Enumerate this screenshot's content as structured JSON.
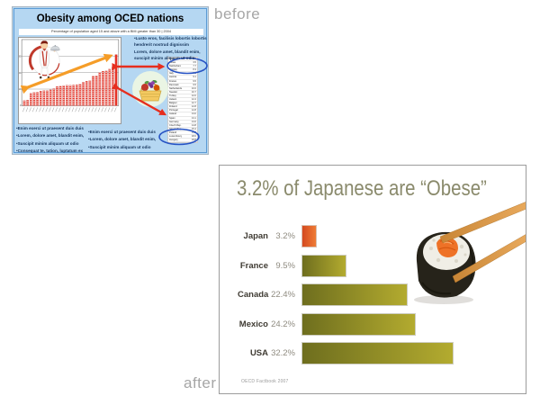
{
  "labels": {
    "before": "before",
    "after": "after"
  },
  "before_slide": {
    "title": "Obesity among OCED nations",
    "subtitle": "Percentage of population aged 15 and above with a BMI greater than 30 | 2004",
    "callout_top_right": [
      "•Lusto eros, facilisis lobortis lobortis",
      "hendrerit nostrud dignissim",
      "Lorem, dolore amet, blandit enim,",
      "suscipit minim aliquam ut odio"
    ],
    "bullets_bottom_left": [
      "•Enim exerci ut praesent duis duis",
      "•Lorem, dolore amet, blandit enim,",
      "•Suscipit minim aliquam ut odio",
      "•Consequat te, tation, luptatum ex"
    ],
    "bullets_bottom_middle": [
      "•Enim exerci ut praesent duis duis",
      "•Lorem, dolore amet, blandit enim,",
      "•Suscipit minim aliquam ut odio"
    ],
    "table_rows": [
      {
        "c": "Japan",
        "v": "3.2"
      },
      {
        "c": "Korea",
        "v": "3.5"
      },
      {
        "c": "Switzerland",
        "v": "7.7"
      },
      {
        "c": "Norway",
        "v": "8.3"
      },
      {
        "c": "Italy",
        "v": "8.5"
      },
      {
        "c": "Austria",
        "v": "9.1"
      },
      {
        "c": "France",
        "v": "9.5"
      },
      {
        "c": "Denmark",
        "v": "9.5"
      },
      {
        "c": "Netherlands",
        "v": "10.0"
      },
      {
        "c": "Sweden",
        "v": "10.7"
      },
      {
        "c": "Turkey",
        "v": "12.0"
      },
      {
        "c": "Iceland",
        "v": "12.4"
      },
      {
        "c": "Belgium",
        "v": "12.7"
      },
      {
        "c": "Finland",
        "v": "12.8"
      },
      {
        "c": "Portugal",
        "v": "12.8"
      },
      {
        "c": "Ireland",
        "v": "13.0"
      },
      {
        "c": "Spain",
        "v": "13.1"
      },
      {
        "c": "Germany",
        "v": "13.6"
      },
      {
        "c": "Czech Rep.",
        "v": "14.8"
      },
      {
        "c": "Slovak Rep.",
        "v": "15.4"
      },
      {
        "c": "Poland",
        "v": "15.7"
      },
      {
        "c": "Luxembourg",
        "v": "18.6"
      },
      {
        "c": "Hungary",
        "v": "18.8"
      },
      {
        "c": "New Zealand",
        "v": "20.9"
      },
      {
        "c": "Australia",
        "v": "21.7"
      },
      {
        "c": "Greece",
        "v": "21.9"
      },
      {
        "c": "United Kin.",
        "v": "23.0"
      },
      {
        "c": "Mexico",
        "v": "24.2"
      },
      {
        "c": "United Sta.",
        "v": "32.2"
      }
    ],
    "colors": {
      "slide_bg": "#b5d7f2",
      "frame": "#5b9bd5",
      "bar_red": "#e63226",
      "arrow_orange": "#f59d28",
      "arrow_red": "#e62e1e",
      "oval_blue": "#2753c4",
      "text_blue": "#17365d"
    }
  },
  "after_slide": {
    "title": "3.2% of Japanese are “Obese”",
    "source": "OECD Factbook 2007",
    "rows": [
      {
        "label": "Japan",
        "value_label": "3.2%"
      },
      {
        "label": "France",
        "value_label": "9.5%"
      },
      {
        "label": "Canada",
        "value_label": "22.4%"
      },
      {
        "label": "Mexico",
        "value_label": "24.2%"
      },
      {
        "label": "USA",
        "value_label": "32.2%"
      }
    ],
    "colors": {
      "title": "#8a8a6c",
      "label": "#3f3b33",
      "value": "#8f8b80",
      "bar_olive": "#9b9727",
      "bar_highlight": "#e05c2a"
    }
  },
  "chart_data": [
    {
      "type": "bar",
      "title": "Obesity among OCED nations",
      "subtitle": "Percentage of population aged 15 and above with a BMI greater than 30 | 2004",
      "note": "about 29 ascending thin red bars; country tick labels illegible at source resolution; orange rising double-arrow annotation; red double-arrows point to side data table",
      "values_approx": [
        3.2,
        3.5,
        7.7,
        8.3,
        8.5,
        9.1,
        9.5,
        9.5,
        10.0,
        10.7,
        12.0,
        12.4,
        12.7,
        12.8,
        12.8,
        13.0,
        13.1,
        13.6,
        14.8,
        15.4,
        15.7,
        18.6,
        18.8,
        20.9,
        21.7,
        21.9,
        23.0,
        24.2,
        32.2
      ],
      "yticks": [
        "30",
        "20",
        "10",
        "0"
      ],
      "ylim": [
        0,
        40
      ],
      "grid": true,
      "legend": false
    },
    {
      "type": "bar",
      "orientation": "horizontal",
      "categories": [
        "Japan",
        "France",
        "Canada",
        "Mexico",
        "USA"
      ],
      "values": [
        3.2,
        9.5,
        22.4,
        24.2,
        32.2
      ],
      "value_labels": [
        "3.2%",
        "9.5%",
        "22.4%",
        "24.2%",
        "32.2%"
      ],
      "title": "3.2% of Japanese are “Obese”",
      "source": "OECD Factbook 2007",
      "xlim": [
        0,
        34
      ],
      "grid": false,
      "legend": false,
      "highlight_category": "Japan",
      "highlight_color": "#e05c2a",
      "bar_color": "#9b9727"
    }
  ]
}
